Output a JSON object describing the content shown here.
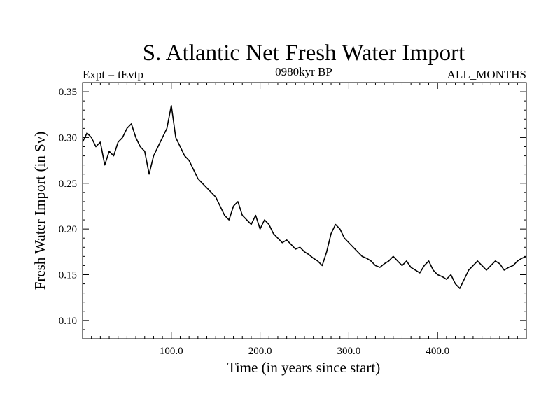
{
  "chart_data": {
    "type": "line",
    "title": "S. Atlantic Net Fresh Water Import",
    "subtitle_left": "Expt = tEvtp",
    "subtitle_center": "0980kyr BP",
    "subtitle_right": "ALL_MONTHS",
    "xlabel": "Time (in years since start)",
    "ylabel": "Fresh Water Import (in Sv)",
    "xlim": [
      0,
      500
    ],
    "ylim": [
      0.08,
      0.36
    ],
    "x_ticks": [
      100,
      200,
      300,
      400
    ],
    "x_tick_labels": [
      "100.0",
      "200.0",
      "300.0",
      "400.0"
    ],
    "y_ticks": [
      0.1,
      0.15,
      0.2,
      0.25,
      0.3,
      0.35
    ],
    "y_tick_labels": [
      "0.10",
      "0.15",
      "0.20",
      "0.25",
      "0.30",
      "0.35"
    ],
    "grid": false,
    "series": [
      {
        "name": "Net Fresh Water Import",
        "x": [
          0,
          5,
          10,
          15,
          20,
          25,
          30,
          35,
          40,
          45,
          50,
          55,
          60,
          65,
          70,
          75,
          80,
          85,
          90,
          95,
          100,
          105,
          110,
          115,
          120,
          125,
          130,
          135,
          140,
          145,
          150,
          155,
          160,
          165,
          170,
          175,
          180,
          185,
          190,
          195,
          200,
          205,
          210,
          215,
          220,
          225,
          230,
          235,
          240,
          245,
          250,
          255,
          260,
          265,
          270,
          275,
          280,
          285,
          290,
          295,
          300,
          305,
          310,
          315,
          320,
          325,
          330,
          335,
          340,
          345,
          350,
          355,
          360,
          365,
          370,
          375,
          380,
          385,
          390,
          395,
          400,
          405,
          410,
          415,
          420,
          425,
          430,
          435,
          440,
          445,
          450,
          455,
          460,
          465,
          470,
          475,
          480,
          485,
          490,
          495,
          500
        ],
        "values": [
          0.295,
          0.305,
          0.3,
          0.29,
          0.295,
          0.27,
          0.285,
          0.28,
          0.295,
          0.3,
          0.31,
          0.315,
          0.3,
          0.29,
          0.285,
          0.26,
          0.28,
          0.29,
          0.3,
          0.31,
          0.335,
          0.3,
          0.29,
          0.28,
          0.275,
          0.265,
          0.255,
          0.25,
          0.245,
          0.24,
          0.235,
          0.225,
          0.215,
          0.21,
          0.225,
          0.23,
          0.215,
          0.21,
          0.205,
          0.215,
          0.2,
          0.21,
          0.205,
          0.195,
          0.19,
          0.185,
          0.188,
          0.183,
          0.178,
          0.18,
          0.175,
          0.172,
          0.168,
          0.165,
          0.16,
          0.175,
          0.195,
          0.205,
          0.2,
          0.19,
          0.185,
          0.18,
          0.175,
          0.17,
          0.168,
          0.165,
          0.16,
          0.158,
          0.162,
          0.165,
          0.17,
          0.165,
          0.16,
          0.165,
          0.158,
          0.155,
          0.152,
          0.16,
          0.165,
          0.155,
          0.15,
          0.148,
          0.145,
          0.15,
          0.14,
          0.135,
          0.145,
          0.155,
          0.16,
          0.165,
          0.16,
          0.155,
          0.16,
          0.165,
          0.162,
          0.155,
          0.158,
          0.16,
          0.165,
          0.168,
          0.17
        ]
      }
    ]
  }
}
